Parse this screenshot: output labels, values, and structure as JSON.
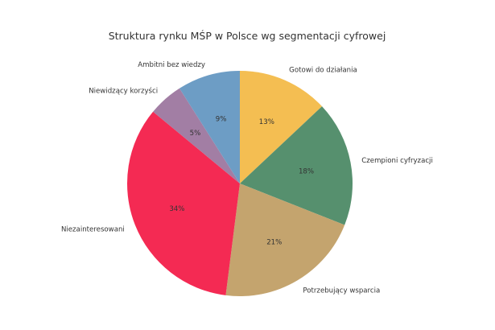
{
  "chart_data": {
    "type": "pie",
    "title": "Struktura rynku MŚP w Polsce wg segmentacji cyfrowej",
    "start_angle_deg": 90,
    "direction": "clockwise",
    "slices": [
      {
        "label": "Gotowi do działania",
        "value": 13,
        "pct_label": "13%",
        "color": "#f4be52"
      },
      {
        "label": "Czempioni cyfryzacji",
        "value": 18,
        "pct_label": "18%",
        "color": "#56906e"
      },
      {
        "label": "Potrzebujący wsparcia",
        "value": 21,
        "pct_label": "21%",
        "color": "#c4a46e"
      },
      {
        "label": "Niezainteresowani",
        "value": 34,
        "pct_label": "34%",
        "color": "#f42a53"
      },
      {
        "label": "Niewidzący korzyści",
        "value": 5,
        "pct_label": "5%",
        "color": "#a27ea4"
      },
      {
        "label": "Ambitni bez wiedzy",
        "value": 9,
        "pct_label": "9%",
        "color": "#6d9dc5"
      }
    ]
  }
}
